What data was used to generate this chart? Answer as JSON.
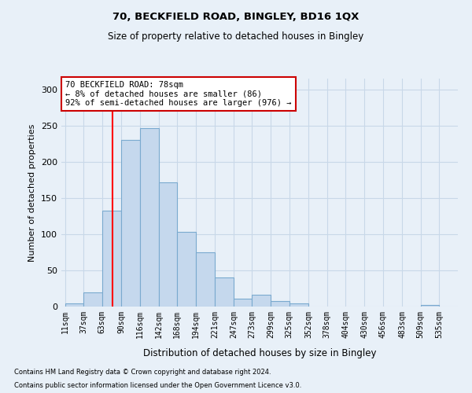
{
  "title1": "70, BECKFIELD ROAD, BINGLEY, BD16 1QX",
  "title2": "Size of property relative to detached houses in Bingley",
  "xlabel": "Distribution of detached houses by size in Bingley",
  "ylabel": "Number of detached properties",
  "footnote1": "Contains HM Land Registry data © Crown copyright and database right 2024.",
  "footnote2": "Contains public sector information licensed under the Open Government Licence v3.0.",
  "bins": [
    11,
    37,
    63,
    90,
    116,
    142,
    168,
    194,
    221,
    247,
    273,
    299,
    325,
    352,
    378,
    404,
    430,
    456,
    483,
    509,
    535
  ],
  "bar_heights": [
    4,
    20,
    133,
    230,
    247,
    172,
    103,
    75,
    40,
    11,
    16,
    8,
    4,
    0,
    0,
    0,
    0,
    0,
    0,
    2
  ],
  "bar_color": "#c5d8ed",
  "bar_edge_color": "#7aaacf",
  "red_line_x": 78,
  "ylim": [
    0,
    315
  ],
  "yticks": [
    0,
    50,
    100,
    150,
    200,
    250,
    300
  ],
  "annotation_title": "70 BECKFIELD ROAD: 78sqm",
  "annotation_line1": "← 8% of detached houses are smaller (86)",
  "annotation_line2": "92% of semi-detached houses are larger (976) →",
  "annotation_box_color": "#ffffff",
  "annotation_box_edge": "#cc0000",
  "grid_color": "#c8d8e8",
  "background_color": "#e8f0f8",
  "title1_fontsize": 9.5,
  "title2_fontsize": 8.5
}
